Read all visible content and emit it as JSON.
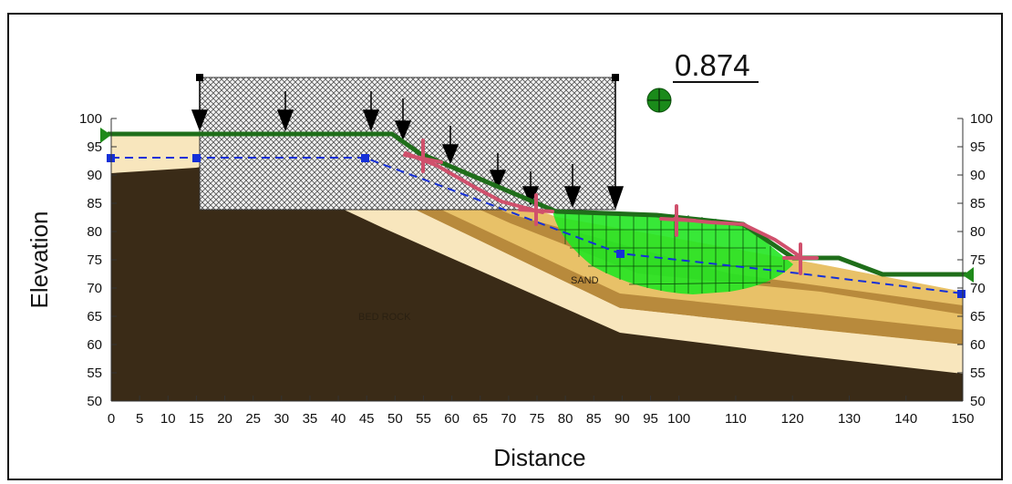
{
  "factor_of_safety": "0.874",
  "x_axis": {
    "title": "Distance",
    "ticks": [
      "0",
      "5",
      "10",
      "15",
      "20",
      "25",
      "30",
      "35",
      "40",
      "45",
      "50",
      "55",
      "60",
      "65",
      "70",
      "75",
      "80",
      "85",
      "90",
      "95",
      "100",
      "110",
      "120",
      "130",
      "140",
      "150"
    ]
  },
  "y_axis": {
    "title": "Elevation",
    "ticks": [
      "50",
      "55",
      "60",
      "65",
      "70",
      "75",
      "80",
      "85",
      "90",
      "95",
      "100"
    ]
  },
  "materials": {
    "bed_rock": "BED ROCK",
    "sand": "SAND"
  },
  "colors": {
    "bedrock": "#3a2b17",
    "light_sand": "#f8e6bd",
    "mid_sand": "#e8c168",
    "dark_sand": "#b88a3c",
    "slip_mass": "#22e622",
    "ground_line": "#1f6e1a",
    "water_table": "#1530d8",
    "trace_marks": "#d0506c"
  }
}
